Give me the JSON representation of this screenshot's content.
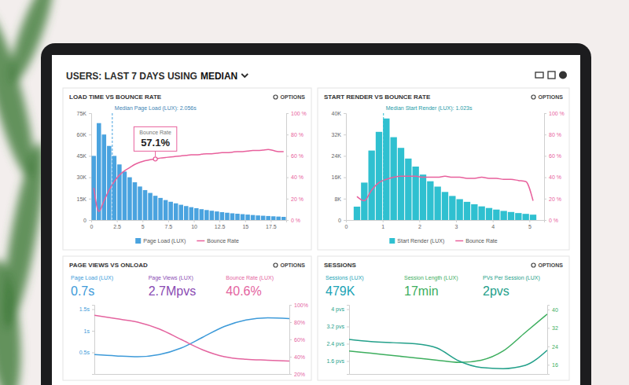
{
  "header": {
    "title": "USERS: LAST 7 DAYS USING",
    "emphasis": "MEDIAN"
  },
  "options_label": "OPTIONS",
  "chart_data": [
    {
      "type": "histogram",
      "title": "LOAD TIME VS BOUNCE RATE",
      "bins": [
        0,
        0.5,
        1,
        1.5,
        2,
        2.5,
        3,
        3.5,
        4,
        4.5,
        5,
        5.5,
        6,
        6.5,
        7,
        7.5,
        8,
        8.5,
        9,
        9.5,
        10,
        10.5,
        11,
        11.5,
        12,
        12.5,
        13,
        13.5,
        14,
        14.5,
        15,
        15.5,
        16,
        16.5,
        17,
        17.5,
        18,
        18.5,
        19
      ],
      "xlim": [
        0,
        19
      ],
      "xticks": [
        0,
        2.5,
        5,
        7.5,
        10,
        12.5,
        15,
        17.5
      ],
      "ylim": [
        0,
        75000
      ],
      "yticks": [
        0,
        {
          "value": 15000,
          "label": "15K"
        },
        {
          "value": 30000,
          "label": "30K"
        },
        {
          "value": 45000,
          "label": "45K"
        },
        {
          "value": 60000,
          "label": "60K"
        },
        {
          "value": 75000,
          "label": "75K"
        }
      ],
      "y2lim": [
        0,
        100
      ],
      "y2ticks": [
        {
          "value": 0,
          "label": "0 %"
        },
        {
          "value": 20,
          "label": "20 %"
        },
        {
          "value": 40,
          "label": "40 %"
        },
        {
          "value": 60,
          "label": "60 %"
        },
        {
          "value": 80,
          "label": "80 %"
        },
        {
          "value": 100,
          "label": "100 %"
        }
      ],
      "series": [
        {
          "name": "Page Load (LUX)",
          "type": "bar",
          "color": "#4aa3df",
          "values": [
            45000,
            68000,
            60000,
            52000,
            45000,
            39000,
            34000,
            30000,
            26500,
            23500,
            21000,
            19000,
            17000,
            15500,
            14000,
            12800,
            11700,
            10700,
            9800,
            9000,
            8300,
            7600,
            7000,
            6500,
            6000,
            5500,
            5100,
            4700,
            4400,
            4100,
            3800,
            3500,
            3200,
            3000,
            2800,
            2600,
            2400,
            2200
          ]
        },
        {
          "name": "Bounce Rate",
          "type": "line",
          "axis": "y2",
          "color": "#e8609c",
          "values": [
            30,
            8,
            18,
            28,
            36,
            42,
            46,
            49,
            52,
            54,
            55.5,
            56.5,
            57.1,
            58,
            58.5,
            59,
            59.5,
            60,
            60.5,
            61,
            61,
            61.5,
            62,
            62,
            62.5,
            63,
            63,
            63.5,
            64,
            64,
            64.5,
            65,
            65,
            65.5,
            66,
            65,
            64,
            64
          ]
        }
      ],
      "annotations": [
        {
          "text": "Median Page Load (LUX): 2.056s",
          "x": 2.056,
          "line_style": "dashed"
        },
        {
          "title": "Bounce Rate",
          "text": "57.1%",
          "x": 6.25,
          "y": 57.1,
          "axis": "y2"
        }
      ],
      "legend": "bottom"
    },
    {
      "type": "histogram",
      "title": "START RENDER VS BOUNCE RATE",
      "bins": [
        0.2,
        0.4,
        0.6,
        0.8,
        1,
        1.2,
        1.4,
        1.6,
        1.8,
        2,
        2.2,
        2.4,
        2.6,
        2.8,
        3,
        3.2,
        3.4,
        3.6,
        3.8,
        4,
        4.2,
        4.4,
        4.6,
        4.8,
        5,
        5.2
      ],
      "xlim": [
        0,
        5.4
      ],
      "xticks": [
        0,
        1,
        2,
        3,
        4,
        5
      ],
      "ylim": [
        0,
        40000
      ],
      "yticks": [
        0,
        {
          "value": 8000,
          "label": "8K"
        },
        {
          "value": 16000,
          "label": "16K"
        },
        {
          "value": 24000,
          "label": "24K"
        },
        {
          "value": 32000,
          "label": "32K"
        },
        {
          "value": 40000,
          "label": "40K"
        }
      ],
      "y2lim": [
        0,
        100
      ],
      "y2ticks": [
        {
          "value": 0,
          "label": "0 %"
        },
        {
          "value": 20,
          "label": "20 %"
        },
        {
          "value": 40,
          "label": "40 %"
        },
        {
          "value": 60,
          "label": "60 %"
        },
        {
          "value": 80,
          "label": "80 %"
        },
        {
          "value": 100,
          "label": "100 %"
        }
      ],
      "series": [
        {
          "name": "Start Render (LUX)",
          "type": "bar",
          "color": "#2fc0d0",
          "values": [
            5000,
            14000,
            26000,
            33000,
            38000,
            31000,
            27000,
            23000,
            20000,
            17000,
            14500,
            12500,
            10500,
            9000,
            7800,
            6800,
            5900,
            5100,
            4500,
            3900,
            3400,
            3000,
            2600,
            2300,
            2000
          ]
        },
        {
          "name": "Bounce Rate",
          "type": "line",
          "axis": "y2",
          "color": "#e8609c",
          "values": [
            22,
            18,
            28,
            35,
            38,
            40,
            41,
            41,
            41,
            40,
            40,
            40,
            41,
            40,
            40,
            39,
            39,
            40,
            39,
            39,
            38,
            38,
            37,
            36,
            18
          ]
        }
      ],
      "annotations": [
        {
          "text": "Median Start Render (LUX): 1.023s",
          "x": 1.023,
          "line_style": "dashed"
        }
      ],
      "legend": "bottom"
    },
    {
      "type": "line",
      "title": "PAGE VIEWS VS ONLOAD",
      "categories": [
        null,
        null,
        null,
        null,
        null,
        null,
        null,
        null,
        null,
        null
      ],
      "tick_labels": "y",
      "ylim": [
        0,
        1.6
      ],
      "yticks": [
        {
          "value": 0.5,
          "label": "0.5s"
        },
        {
          "value": 1,
          "label": "1s"
        },
        {
          "value": 1.5,
          "label": "1.5s"
        }
      ],
      "y2lim": [
        20,
        100
      ],
      "y2ticks": [
        {
          "value": 20,
          "label": "20%"
        },
        {
          "value": 40,
          "label": "40%"
        },
        {
          "value": 60,
          "label": "60%"
        },
        {
          "value": 80,
          "label": "80%"
        },
        {
          "value": 100,
          "label": "100%"
        }
      ],
      "series": [
        {
          "name": "Page Load (LUX)",
          "color": "#3d9ad9",
          "summary": "0.7s",
          "values": [
            0.45,
            0.42,
            0.4,
            0.45,
            0.6,
            0.85,
            1.1,
            1.25,
            1.3,
            1.28
          ]
        },
        {
          "name": "Page Views (LUX)",
          "color": "#8a4bb3",
          "summary": "2.7Mpvs"
        },
        {
          "name": "Bounce Rate (LUX)",
          "color": "#e4649f",
          "summary": "40.6%",
          "axis": "y2",
          "values": [
            88,
            84,
            80,
            72,
            60,
            48,
            40,
            37,
            36,
            35
          ]
        }
      ]
    },
    {
      "type": "line",
      "title": "SESSIONS",
      "categories": [
        null,
        null,
        null,
        null,
        null,
        null,
        null,
        null,
        null,
        null
      ],
      "tick_labels": "y",
      "ylim": [
        1,
        4.2
      ],
      "yticks": [
        {
          "value": 1.6,
          "label": "1.6 pvs"
        },
        {
          "value": 2.4,
          "label": "2.4 pvs"
        },
        {
          "value": 3.2,
          "label": "3.2 pvs"
        },
        {
          "value": 4,
          "label": "4 pvs"
        }
      ],
      "y2lim": [
        12,
        42
      ],
      "y2ticks": [
        16,
        24,
        32,
        40
      ],
      "series": [
        {
          "name": "Sessions (LUX)",
          "color": "#1aa3b5",
          "summary": "479K"
        },
        {
          "name": "Session Length (LUX)",
          "color": "#3dae5e",
          "summary": "17min",
          "axis": "y2",
          "values": [
            22,
            21,
            20,
            19,
            18,
            17,
            18,
            22,
            30,
            38
          ]
        },
        {
          "name": "PVs Per Session (LUX)",
          "color": "#23a08a",
          "summary": "2pvs",
          "values": [
            2.6,
            2.5,
            2.45,
            2.4,
            2.2,
            1.6,
            1.3,
            1.25,
            1.4,
            2.1
          ]
        }
      ]
    }
  ]
}
